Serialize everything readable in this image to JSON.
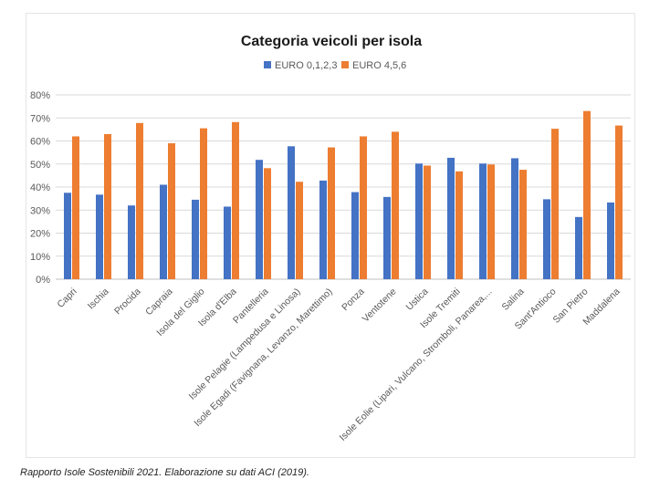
{
  "caption": "Rapporto Isole Sostenibili 2021. Elaborazione su dati ACI (2019).",
  "colors": {
    "series1": "#4472C4",
    "series2": "#ED7D31",
    "grid": "#d9d9d9",
    "text": "#595959",
    "title": "#1a1a1a"
  },
  "chart_data": {
    "type": "bar",
    "title": "Categoria veicoli per isola",
    "xlabel": "",
    "ylabel": "",
    "ylim": [
      0,
      0.8
    ],
    "yticks": [
      "0%",
      "10%",
      "20%",
      "30%",
      "40%",
      "50%",
      "60%",
      "70%",
      "80%"
    ],
    "grid": true,
    "legend_position": "top",
    "categories": [
      "Capri",
      "Ischia",
      "Procida",
      "Capraia",
      "Isola del Giglio",
      "Isola d'Elba",
      "Pantelleria",
      "Isole Pelagie (Lampedusa e Linosa)",
      "Isole Egadi (Favignana, Levanzo, Marettimo)",
      "Ponza",
      "Ventotene",
      "Ustica",
      "Isole Tremiti",
      "Isole Eolie (Lipari, Vulcano, Stromboli, Panarea,...",
      "Salina",
      "Sant'Antioco",
      "San Pietro",
      "Maddalena"
    ],
    "series": [
      {
        "name": "EURO 0,1,2,3",
        "values": [
          0.375,
          0.367,
          0.32,
          0.41,
          0.345,
          0.315,
          0.518,
          0.577,
          0.428,
          0.378,
          0.357,
          0.502,
          0.527,
          0.502,
          0.525,
          0.347,
          0.27,
          0.333
        ]
      },
      {
        "name": "EURO 4,5,6",
        "values": [
          0.62,
          0.63,
          0.678,
          0.59,
          0.655,
          0.682,
          0.482,
          0.423,
          0.572,
          0.62,
          0.64,
          0.493,
          0.468,
          0.498,
          0.475,
          0.653,
          0.73,
          0.667
        ]
      }
    ]
  }
}
